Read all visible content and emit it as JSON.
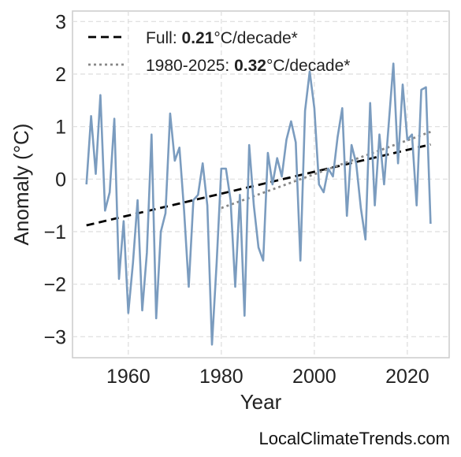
{
  "chart_data": {
    "type": "line",
    "xlabel": "Year",
    "ylabel": "Anomaly (°C)",
    "xlim": [
      1948,
      2029
    ],
    "ylim": [
      -3.4,
      3.2
    ],
    "x_ticks": [
      1960,
      1980,
      2000,
      2020
    ],
    "y_ticks": [
      -3,
      -2,
      -1,
      0,
      1,
      2,
      3
    ],
    "x_tick_labels": [
      "1960",
      "1980",
      "2000",
      "2020"
    ],
    "y_tick_labels": [
      "−3",
      "−2",
      "−1",
      "0",
      "1",
      "2",
      "3"
    ],
    "grid": true,
    "legend_position": "top-left",
    "series": [
      {
        "color": "#7b9cbf",
        "x": [
          1951,
          1952,
          1953,
          1954,
          1955,
          1956,
          1957,
          1958,
          1959,
          1960,
          1961,
          1962,
          1963,
          1964,
          1965,
          1966,
          1967,
          1968,
          1969,
          1970,
          1971,
          1972,
          1973,
          1974,
          1975,
          1976,
          1977,
          1978,
          1979,
          1980,
          1981,
          1982,
          1983,
          1984,
          1985,
          1986,
          1987,
          1988,
          1989,
          1990,
          1991,
          1992,
          1993,
          1994,
          1995,
          1996,
          1997,
          1998,
          1999,
          2000,
          2001,
          2002,
          2003,
          2004,
          2005,
          2006,
          2007,
          2008,
          2009,
          2010,
          2011,
          2012,
          2013,
          2014,
          2015,
          2016,
          2017,
          2018,
          2019,
          2020,
          2021,
          2022,
          2023,
          2024,
          2025
        ],
        "y": [
          -0.1,
          1.2,
          0.1,
          1.6,
          -0.6,
          -0.25,
          1.15,
          -1.9,
          -0.8,
          -2.55,
          -1.6,
          -0.4,
          -2.5,
          -1.4,
          0.85,
          -2.65,
          -1.0,
          -0.65,
          1.25,
          0.35,
          0.6,
          -0.6,
          -2.05,
          -0.4,
          -0.3,
          0.3,
          -0.5,
          -3.15,
          -1.6,
          0.2,
          0.2,
          -0.4,
          -2.05,
          -0.3,
          -2.6,
          0.65,
          -0.5,
          -1.3,
          -1.55,
          0.5,
          -0.1,
          0.4,
          0.05,
          0.75,
          1.1,
          0.7,
          -1.55,
          1.3,
          2.05,
          1.35,
          -0.1,
          -0.25,
          0.2,
          0.05,
          0.8,
          1.35,
          -0.7,
          0.65,
          0.3,
          -0.55,
          -1.15,
          1.45,
          -0.5,
          0.85,
          -0.1,
          1.05,
          2.2,
          0.3,
          1.8,
          0.75,
          0.85,
          -0.5,
          1.7,
          1.75,
          -0.85
        ]
      }
    ],
    "trendlines": [
      {
        "x": [
          1951,
          2025
        ],
        "y": [
          -0.88,
          0.66
        ],
        "style": "dashed",
        "color": "#000000"
      },
      {
        "x": [
          1980,
          2025
        ],
        "y": [
          -0.55,
          0.9
        ],
        "style": "dotted",
        "color": "#888888"
      }
    ],
    "legend": [
      {
        "style": "dashed",
        "color": "#000000",
        "prefix": "Full: ",
        "bold": "0.21",
        "suffix": "°C/decade*"
      },
      {
        "style": "dotted",
        "color": "#888888",
        "prefix": "1980-2025: ",
        "bold": "0.32",
        "suffix": "°C/decade*"
      }
    ]
  },
  "watermark": "LocalClimateTrends.com"
}
